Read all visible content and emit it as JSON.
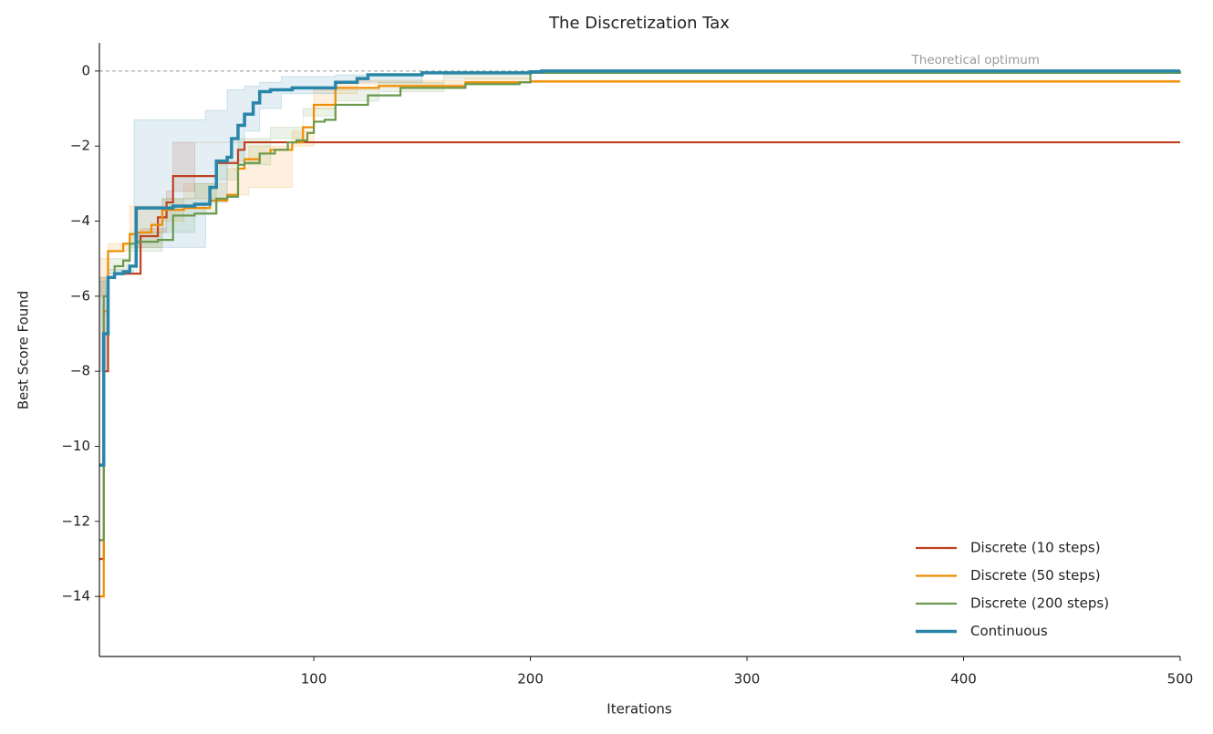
{
  "chart_data": {
    "type": "step-line",
    "title": "The Discretization Tax",
    "xlabel": "Iterations",
    "ylabel": "Best Score Found",
    "xlim": [
      1,
      500
    ],
    "ylim": [
      -15.6,
      0.75
    ],
    "xticks": [
      100,
      200,
      300,
      400,
      500
    ],
    "yticks": [
      {
        "value": -14,
        "label": "−14"
      },
      {
        "value": -12,
        "label": "−12"
      },
      {
        "value": -10,
        "label": "−10"
      },
      {
        "value": -8,
        "label": "−8"
      },
      {
        "value": -6,
        "label": "−6"
      },
      {
        "value": -4,
        "label": "−4"
      },
      {
        "value": -2,
        "label": "−2"
      },
      0
    ],
    "reference": {
      "value": 0,
      "label": "Theoretical optimum",
      "color": "#999999"
    },
    "legend": "lower right",
    "series": [
      {
        "name": "Discrete (10 steps)",
        "color": "#bf4121",
        "line_width": 2.2,
        "x": [
          1,
          3,
          5,
          8,
          17,
          20,
          28,
          32,
          35,
          45,
          55,
          62,
          65,
          68,
          500
        ],
        "values": [
          -13,
          -8,
          -5.5,
          -5.4,
          -5.4,
          -4.4,
          -3.9,
          -3.5,
          -2.8,
          -2.8,
          -2.45,
          -2.45,
          -2.1,
          -1.9,
          -1.9
        ],
        "band": {
          "x": [
            1,
            5,
            18,
            20,
            32,
            35,
            45,
            67,
            70,
            500
          ],
          "lower": [
            -15,
            -5.5,
            -5.4,
            -4.6,
            -4.2,
            -3.2,
            -3.2,
            -1.9,
            -1.9,
            -1.9
          ],
          "upper": [
            -8,
            -5.4,
            -4.3,
            -4.3,
            -3.4,
            -1.9,
            -1.9,
            -1.9,
            -1.9,
            -1.9
          ]
        }
      },
      {
        "name": "Discrete (50 steps)",
        "color": "#f08c00",
        "line_width": 2.2,
        "x": [
          1,
          3,
          5,
          6,
          12,
          15,
          18,
          25,
          30,
          40,
          52,
          60,
          65,
          68,
          75,
          80,
          90,
          95,
          100,
          110,
          130,
          170,
          200,
          500
        ],
        "values": [
          -14,
          -6.4,
          -4.8,
          -4.8,
          -4.6,
          -4.35,
          -4.3,
          -4.1,
          -3.7,
          -3.65,
          -3.45,
          -3.3,
          -2.6,
          -2.35,
          -2.2,
          -2.1,
          -1.9,
          -1.5,
          -0.9,
          -0.45,
          -0.4,
          -0.3,
          -0.28,
          -0.28
        ],
        "band": {
          "x": [
            1,
            5,
            15,
            30,
            40,
            60,
            70,
            90,
            100,
            110,
            120,
            170,
            200,
            500
          ],
          "lower": [
            -14,
            -5,
            -4.8,
            -4.7,
            -4.0,
            -3.4,
            -3.3,
            -3.1,
            -2.0,
            -1.0,
            -0.6,
            -0.35,
            -0.3,
            -0.3
          ],
          "upper": [
            -6,
            -4.6,
            -3.6,
            -3.4,
            -3.0,
            -2.6,
            -2.0,
            -1.6,
            -0.5,
            -0.3,
            -0.25,
            -0.2,
            -0.25,
            -0.25
          ]
        }
      },
      {
        "name": "Discrete (200 steps)",
        "color": "#6a994e",
        "line_width": 2.2,
        "x": [
          1,
          3,
          5,
          8,
          12,
          15,
          18,
          28,
          35,
          45,
          55,
          60,
          65,
          68,
          75,
          82,
          88,
          92,
          97,
          100,
          105,
          110,
          125,
          140,
          170,
          195,
          200,
          500
        ],
        "values": [
          -12.5,
          -6,
          -5.5,
          -5.2,
          -5.05,
          -4.6,
          -4.55,
          -4.5,
          -3.85,
          -3.8,
          -3.4,
          -3.35,
          -2.5,
          -2.45,
          -2.2,
          -2.1,
          -1.9,
          -1.85,
          -1.65,
          -1.35,
          -1.3,
          -0.9,
          -0.65,
          -0.45,
          -0.35,
          -0.3,
          -0.05,
          0
        ],
        "band": {
          "x": [
            1,
            5,
            15,
            30,
            45,
            55,
            65,
            80,
            95,
            110,
            130,
            160,
            200,
            205,
            500
          ],
          "lower": [
            -12,
            -5.5,
            -5.3,
            -4.8,
            -4.3,
            -3.8,
            -2.9,
            -2.5,
            -1.8,
            -1.0,
            -0.8,
            -0.55,
            -0.1,
            0,
            0
          ],
          "upper": [
            -6,
            -5.0,
            -4.3,
            -3.4,
            -3.0,
            -2.5,
            -1.8,
            -1.5,
            -1.2,
            -0.5,
            -0.3,
            -0.2,
            0,
            0,
            0
          ]
        }
      },
      {
        "name": "Continuous",
        "color": "#2a86a8",
        "line_width": 3.5,
        "x": [
          1,
          3,
          5,
          8,
          12,
          15,
          18,
          35,
          40,
          45,
          52,
          55,
          60,
          62,
          65,
          68,
          72,
          75,
          80,
          90,
          110,
          120,
          125,
          150,
          200,
          205,
          250,
          500
        ],
        "values": [
          -10.5,
          -7,
          -5.5,
          -5.4,
          -5.35,
          -5.2,
          -3.65,
          -3.6,
          -3.6,
          -3.55,
          -3.1,
          -2.4,
          -2.3,
          -1.8,
          -1.45,
          -1.15,
          -0.85,
          -0.55,
          -0.5,
          -0.45,
          -0.3,
          -0.2,
          -0.1,
          -0.05,
          -0.02,
          0,
          0,
          0
        ],
        "band": {
          "x": [
            1,
            5,
            17,
            40,
            50,
            60,
            68,
            75,
            85,
            110,
            150,
            205,
            290,
            500
          ],
          "lower": [
            -12,
            -5.6,
            -5.4,
            -4.7,
            -4.7,
            -3.5,
            -2.4,
            -1.6,
            -1.0,
            -0.6,
            -0.3,
            -0.05,
            0,
            0
          ],
          "upper": [
            -8,
            -5.3,
            -1.3,
            -1.3,
            -1.05,
            -0.5,
            -0.4,
            -0.3,
            -0.15,
            -0.1,
            -0.05,
            0,
            0,
            0
          ]
        }
      }
    ]
  }
}
